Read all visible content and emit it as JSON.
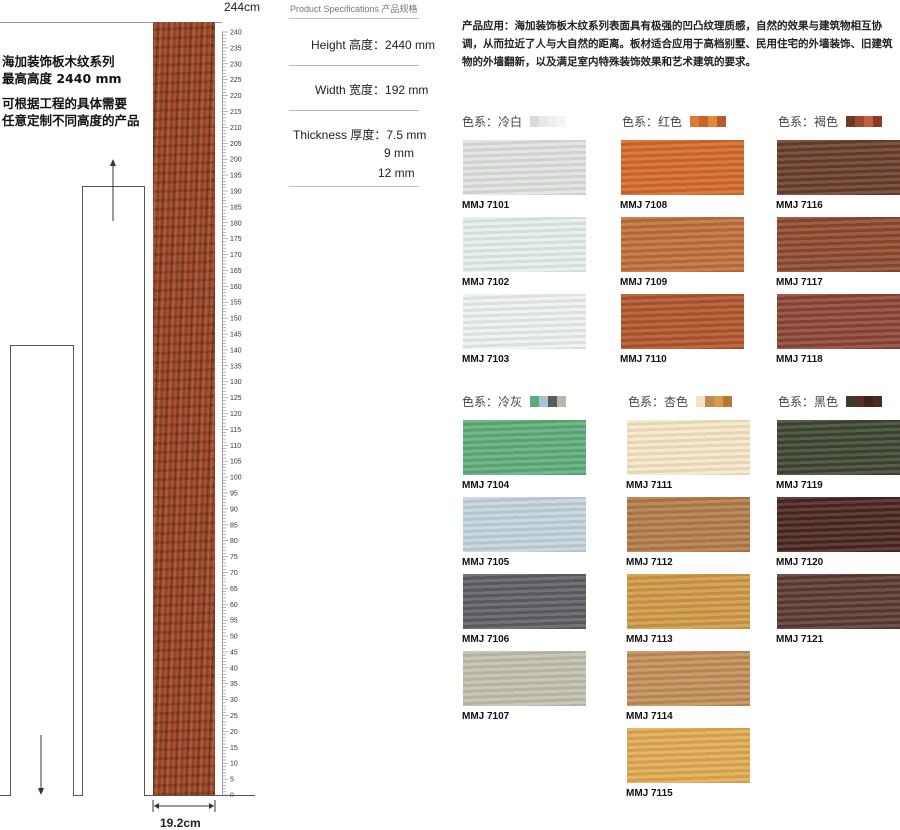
{
  "left_text": {
    "line1": "海加装饰板木纹系列",
    "line2": "最高高度  2440 mm",
    "line3": "可根据工程的具体需要",
    "line4": "任意定制不同高度的产品"
  },
  "dimensions": {
    "height_label": "244cm",
    "width_label": "19.2cm"
  },
  "ruler": {
    "min": 0,
    "max": 240,
    "label_step": 5
  },
  "specs": {
    "title": "Product Specifications 产品规格",
    "height_label": "Height 高度：",
    "height_value": "2440 mm",
    "width_label": "Width 宽度：",
    "width_value": "192 mm",
    "thickness_label": "Thickness 厚度：",
    "thickness_values": [
      "7.5 mm",
      "9 mm",
      "12 mm"
    ]
  },
  "description": "产品应用：海加装饰板木纹系列表面具有极强的凹凸纹理质感，自然的效果与建筑物相互协调，从而拉近了人与大自然的距离。板材适合应用于高档别墅、民用住宅的外墙装饰、旧建筑物的外墙翻新，以及满足室内特殊装饰效果和艺术建筑的要求。",
  "groups": [
    {
      "title": "色系：冷白",
      "chips": [
        "#d8dcd6",
        "#e6e9e4",
        "#eef0ec",
        "#f5f6f3"
      ],
      "items": [
        {
          "code": "MMJ 7101",
          "color": "#dfe3de"
        },
        {
          "code": "MMJ 7102",
          "color": "#e4efe8"
        },
        {
          "code": "MMJ 7103",
          "color": "#eef2ee"
        }
      ]
    },
    {
      "title": "色系：红色",
      "chips": [
        "#e07a30",
        "#c8642a",
        "#e0883c",
        "#b85a2a"
      ],
      "items": [
        {
          "code": "MMJ 7108",
          "color": "#d4692a"
        },
        {
          "code": "MMJ 7109",
          "color": "#c0703a"
        },
        {
          "code": "MMJ 7110",
          "color": "#b2552c"
        }
      ]
    },
    {
      "title": "色系：褐色",
      "chips": [
        "#6e3a26",
        "#a04a30",
        "#c06040",
        "#8a3a28"
      ],
      "items": [
        {
          "code": "MMJ 7116",
          "color": "#6a3e2c"
        },
        {
          "code": "MMJ 7117",
          "color": "#8e4a2e"
        },
        {
          "code": "MMJ 7118",
          "color": "#8c4634"
        }
      ]
    },
    {
      "title": "色系：冷灰",
      "chips": [
        "#5cab7c",
        "#a8c4d0",
        "#5a5c5e",
        "#b8b8a8"
      ],
      "items": [
        {
          "code": "MMJ 7104",
          "color": "#5fae7a"
        },
        {
          "code": "MMJ 7105",
          "color": "#c4d4dc"
        },
        {
          "code": "MMJ 7106",
          "color": "#5e6064"
        },
        {
          "code": "MMJ 7107",
          "color": "#c2bfae"
        }
      ]
    },
    {
      "title": "色系：杏色",
      "chips": [
        "#f4e4c4",
        "#c08a54",
        "#d89a44",
        "#b07a38"
      ],
      "items": [
        {
          "code": "MMJ 7111",
          "color": "#f6e6c6"
        },
        {
          "code": "MMJ 7112",
          "color": "#b47c48"
        },
        {
          "code": "MMJ 7113",
          "color": "#d09a46"
        },
        {
          "code": "MMJ 7114",
          "color": "#c48e58"
        },
        {
          "code": "MMJ 7115",
          "color": "#e0aa52"
        }
      ]
    },
    {
      "title": "色系：黑色",
      "chips": [
        "#3c3c2c",
        "#5a2a24",
        "#3a2418",
        "#4a2a22"
      ],
      "items": [
        {
          "code": "MMJ 7119",
          "color": "#3e4632"
        },
        {
          "code": "MMJ 7120",
          "color": "#4a2620"
        },
        {
          "code": "MMJ 7121",
          "color": "#5a3a30"
        }
      ]
    }
  ]
}
